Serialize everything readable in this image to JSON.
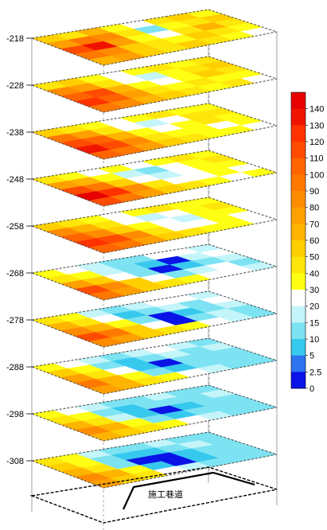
{
  "chart_data": {
    "type": "heatmap",
    "title": "",
    "depth_levels": [
      -218,
      -228,
      -238,
      -248,
      -258,
      -268,
      -278,
      -288,
      -298,
      -308
    ],
    "depth_labels": [
      "-218",
      "-228",
      "-238",
      "-248",
      "-258",
      "-268",
      "-278",
      "-288",
      "-298",
      "-308"
    ],
    "colorbar": {
      "tick_labels": [
        "140",
        "130",
        "120",
        "110",
        "100",
        "90",
        "80",
        "70",
        "60",
        "50",
        "40",
        "30",
        "20",
        "15",
        "10",
        "5",
        "2.5",
        "0"
      ],
      "bins": [
        {
          "from": 0,
          "to": 2.5,
          "color": "#0a14e6"
        },
        {
          "from": 2.5,
          "to": 5,
          "color": "#2e73f0"
        },
        {
          "from": 5,
          "to": 10,
          "color": "#37c8ee"
        },
        {
          "from": 10,
          "to": 15,
          "color": "#7de3f2"
        },
        {
          "from": 15,
          "to": 20,
          "color": "#c4f5fa"
        },
        {
          "from": 20,
          "to": 30,
          "color": "#ffffff"
        },
        {
          "from": 30,
          "to": 40,
          "color": "#ffff14"
        },
        {
          "from": 40,
          "to": 50,
          "color": "#ffe60a"
        },
        {
          "from": 50,
          "to": 60,
          "color": "#ffcf00"
        },
        {
          "from": 60,
          "to": 70,
          "color": "#ffb400"
        },
        {
          "from": 70,
          "to": 80,
          "color": "#ffa000"
        },
        {
          "from": 80,
          "to": 90,
          "color": "#ff8c00"
        },
        {
          "from": 90,
          "to": 100,
          "color": "#ff7800"
        },
        {
          "from": 100,
          "to": 110,
          "color": "#ff6400"
        },
        {
          "from": 110,
          "to": 120,
          "color": "#ff4b00"
        },
        {
          "from": 120,
          "to": 130,
          "color": "#ff3200"
        },
        {
          "from": 130,
          "to": 140,
          "color": "#f01400"
        },
        {
          "from": 140,
          "to": 150,
          "color": "#e60000"
        }
      ]
    },
    "layers": [
      {
        "depth": "-218",
        "grid": [
          [
            50,
            40,
            60,
            30,
            20,
            40,
            50,
            30
          ],
          [
            70,
            90,
            80,
            40,
            10,
            30,
            40,
            50
          ],
          [
            110,
            130,
            70,
            30,
            20,
            40,
            60,
            40
          ],
          [
            90,
            80,
            50,
            40,
            30,
            50,
            40,
            30
          ],
          [
            60,
            70,
            50,
            40,
            50,
            40,
            30,
            20
          ]
        ]
      },
      {
        "depth": "-228",
        "grid": [
          [
            40,
            50,
            30,
            20,
            30,
            40,
            30,
            40
          ],
          [
            80,
            70,
            40,
            20,
            15,
            30,
            40,
            50
          ],
          [
            100,
            110,
            60,
            30,
            20,
            30,
            50,
            40
          ],
          [
            120,
            100,
            70,
            40,
            30,
            40,
            30,
            30
          ],
          [
            90,
            80,
            60,
            50,
            40,
            30,
            40,
            20
          ]
        ]
      },
      {
        "depth": "-238",
        "grid": [
          [
            50,
            40,
            30,
            20,
            30,
            40,
            30,
            30
          ],
          [
            90,
            70,
            40,
            20,
            15,
            20,
            40,
            40
          ],
          [
            110,
            100,
            60,
            30,
            20,
            30,
            40,
            30
          ],
          [
            130,
            110,
            80,
            40,
            30,
            30,
            20,
            30
          ],
          [
            100,
            90,
            70,
            50,
            40,
            30,
            30,
            20
          ]
        ]
      },
      {
        "depth": "-248",
        "grid": [
          [
            40,
            30,
            20,
            30,
            20,
            30,
            40,
            30
          ],
          [
            70,
            60,
            30,
            15,
            10,
            20,
            30,
            40
          ],
          [
            110,
            90,
            50,
            20,
            15,
            20,
            30,
            30
          ],
          [
            140,
            120,
            80,
            40,
            20,
            20,
            30,
            20
          ],
          [
            110,
            90,
            70,
            50,
            40,
            30,
            20,
            30
          ]
        ]
      },
      {
        "depth": "-258",
        "grid": [
          [
            50,
            40,
            30,
            20,
            30,
            40,
            30,
            30
          ],
          [
            80,
            60,
            40,
            20,
            15,
            20,
            30,
            40
          ],
          [
            100,
            80,
            50,
            30,
            20,
            15,
            30,
            30
          ],
          [
            120,
            110,
            80,
            40,
            20,
            20,
            30,
            20
          ],
          [
            100,
            90,
            70,
            50,
            40,
            30,
            30,
            20
          ]
        ]
      },
      {
        "depth": "-268",
        "grid": [
          [
            30,
            20,
            15,
            10,
            10,
            20,
            20,
            15
          ],
          [
            40,
            30,
            15,
            10,
            5,
            2,
            15,
            20
          ],
          [
            70,
            50,
            20,
            10,
            2,
            5,
            10,
            15
          ],
          [
            110,
            80,
            50,
            20,
            10,
            15,
            20,
            10
          ],
          [
            90,
            70,
            50,
            40,
            30,
            20,
            20,
            15
          ]
        ]
      },
      {
        "depth": "-278",
        "grid": [
          [
            40,
            30,
            15,
            10,
            15,
            20,
            20,
            15
          ],
          [
            60,
            40,
            20,
            5,
            10,
            15,
            10,
            20
          ],
          [
            80,
            60,
            30,
            10,
            2,
            5,
            10,
            15
          ],
          [
            110,
            90,
            50,
            20,
            2,
            10,
            15,
            10
          ],
          [
            80,
            70,
            50,
            40,
            30,
            20,
            15,
            10
          ]
        ]
      },
      {
        "depth": "-288",
        "grid": [
          [
            30,
            20,
            15,
            10,
            15,
            20,
            15,
            10
          ],
          [
            50,
            30,
            10,
            5,
            10,
            15,
            10,
            15
          ],
          [
            70,
            40,
            20,
            5,
            2,
            10,
            10,
            10
          ],
          [
            90,
            60,
            30,
            10,
            5,
            10,
            10,
            10
          ],
          [
            70,
            60,
            40,
            30,
            20,
            15,
            10,
            10
          ]
        ]
      },
      {
        "depth": "-298",
        "grid": [
          [
            30,
            20,
            15,
            10,
            10,
            15,
            10,
            10
          ],
          [
            40,
            30,
            10,
            5,
            10,
            10,
            10,
            15
          ],
          [
            60,
            40,
            15,
            5,
            2,
            5,
            10,
            10
          ],
          [
            80,
            60,
            30,
            10,
            5,
            10,
            10,
            10
          ],
          [
            60,
            50,
            40,
            30,
            20,
            15,
            10,
            10
          ]
        ]
      },
      {
        "depth": "-308",
        "grid": [
          [
            40,
            30,
            15,
            10,
            10,
            15,
            10,
            10
          ],
          [
            50,
            30,
            10,
            5,
            5,
            10,
            15,
            10
          ],
          [
            60,
            40,
            10,
            2,
            2,
            5,
            10,
            10
          ],
          [
            80,
            60,
            30,
            5,
            2,
            5,
            10,
            10
          ],
          [
            70,
            50,
            40,
            20,
            15,
            10,
            10,
            10
          ]
        ]
      }
    ],
    "annotation": "施工巷道"
  }
}
